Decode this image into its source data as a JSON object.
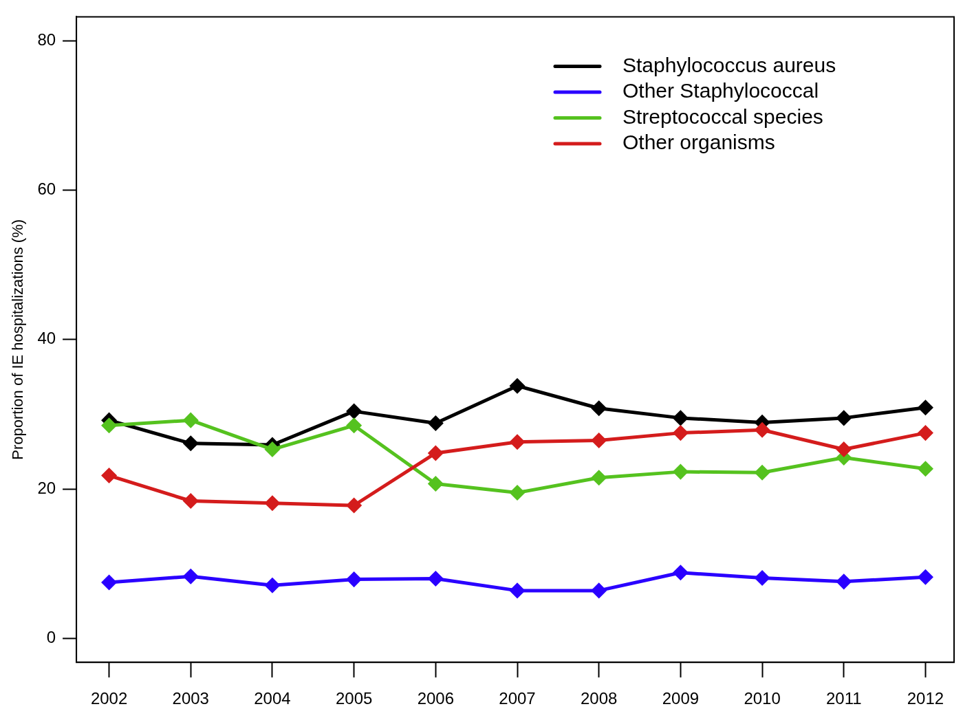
{
  "chart_data": {
    "type": "line",
    "ylabel": "Proportion of IE hospitalizations (%)",
    "x": [
      2002,
      2003,
      2004,
      2005,
      2006,
      2007,
      2008,
      2009,
      2010,
      2011,
      2012
    ],
    "xlim": [
      2001.6,
      2012.35
    ],
    "xticks": [
      2002,
      2003,
      2004,
      2005,
      2006,
      2007,
      2008,
      2009,
      2010,
      2011,
      2012
    ],
    "ylim": [
      -3.2,
      83.2
    ],
    "yticks": [
      0,
      20,
      40,
      60,
      80
    ],
    "series": [
      {
        "name": "Staphylococcus aureus",
        "color": "#000000",
        "values": [
          29.2,
          26.1,
          25.9,
          30.4,
          28.8,
          33.8,
          30.8,
          29.5,
          28.9,
          29.5,
          30.9
        ]
      },
      {
        "name": "Other Staphylococcal",
        "color": "#2a00ff",
        "values": [
          7.5,
          8.3,
          7.1,
          7.9,
          8.0,
          6.4,
          6.4,
          8.8,
          8.1,
          7.6,
          8.2
        ]
      },
      {
        "name": "Streptococcal species",
        "color": "#55c21f",
        "values": [
          28.5,
          29.2,
          25.3,
          28.5,
          20.7,
          19.5,
          21.5,
          22.3,
          22.2,
          24.2,
          22.7
        ]
      },
      {
        "name": "Other organisms",
        "color": "#d41c1c",
        "values": [
          21.8,
          18.4,
          18.1,
          17.8,
          24.8,
          26.3,
          26.5,
          27.5,
          27.9,
          25.3,
          27.5
        ]
      }
    ],
    "legend": "top right",
    "marker": "diamond",
    "line_style": "solid",
    "grid": false
  }
}
